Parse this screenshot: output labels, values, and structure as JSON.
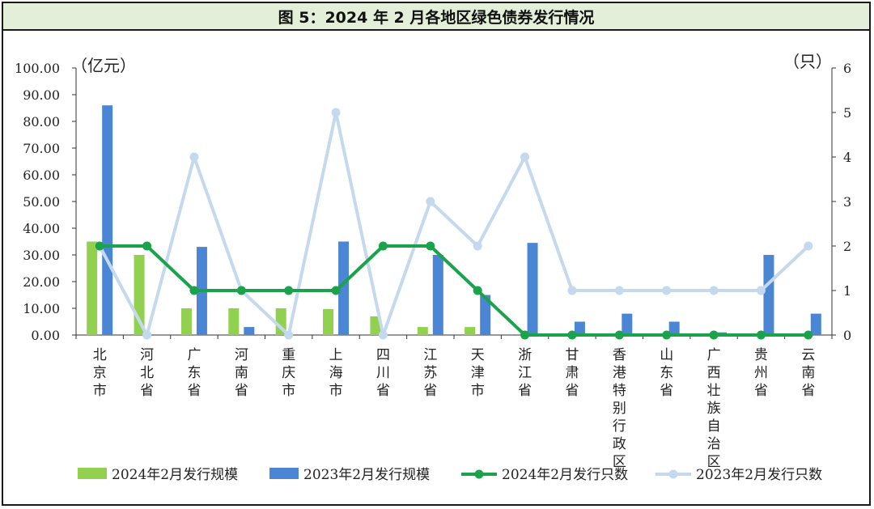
{
  "title": "图 5：2024 年 2 月各地区绿色债券发行情况",
  "chart_data": {
    "type": "bar",
    "categories": [
      "北京市",
      "河北省",
      "广东省",
      "河南省",
      "重庆市",
      "上海市",
      "四川省",
      "江苏省",
      "天津市",
      "浙江省",
      "甘肃省",
      "香港特别行政区",
      "山东省",
      "广西壮族自治区",
      "贵州省",
      "云南省"
    ],
    "left_axis": {
      "unit_label": "（亿元）",
      "ylim": [
        0,
        100
      ],
      "ticks": [
        "0.00",
        "10.00",
        "20.00",
        "30.00",
        "40.00",
        "50.00",
        "60.00",
        "70.00",
        "80.00",
        "90.00",
        "100.00"
      ]
    },
    "right_axis": {
      "unit_label": "（只）",
      "ylim": [
        0,
        6
      ],
      "ticks": [
        "0",
        "1",
        "2",
        "3",
        "4",
        "5",
        "6"
      ]
    },
    "series": [
      {
        "name": "2024年2月发行规模",
        "type": "bar",
        "axis": "left",
        "color": "#92d050",
        "values": [
          35,
          30,
          10,
          10,
          10,
          9.7,
          7,
          3,
          3,
          0,
          0,
          0,
          0,
          0,
          0,
          0
        ]
      },
      {
        "name": "2023年2月发行规模",
        "type": "bar",
        "axis": "left",
        "color": "#4a86d4",
        "values": [
          86,
          0,
          33,
          3,
          0,
          35,
          0,
          30,
          15,
          34.5,
          5,
          8,
          5,
          1,
          30,
          8
        ]
      },
      {
        "name": "2024年2月发行只数",
        "type": "line",
        "axis": "right",
        "color": "#1aa34a",
        "values": [
          2,
          2,
          1,
          1,
          1,
          1,
          2,
          2,
          1,
          0,
          0,
          0,
          0,
          0,
          0,
          0
        ]
      },
      {
        "name": "2023年2月发行只数",
        "type": "line",
        "axis": "right",
        "color": "#c5d9ee",
        "values": [
          2,
          0,
          4,
          1,
          0,
          5,
          0,
          3,
          2,
          4,
          1,
          1,
          1,
          1,
          1,
          2
        ]
      }
    ],
    "legend_position": "bottom",
    "grid": false
  }
}
